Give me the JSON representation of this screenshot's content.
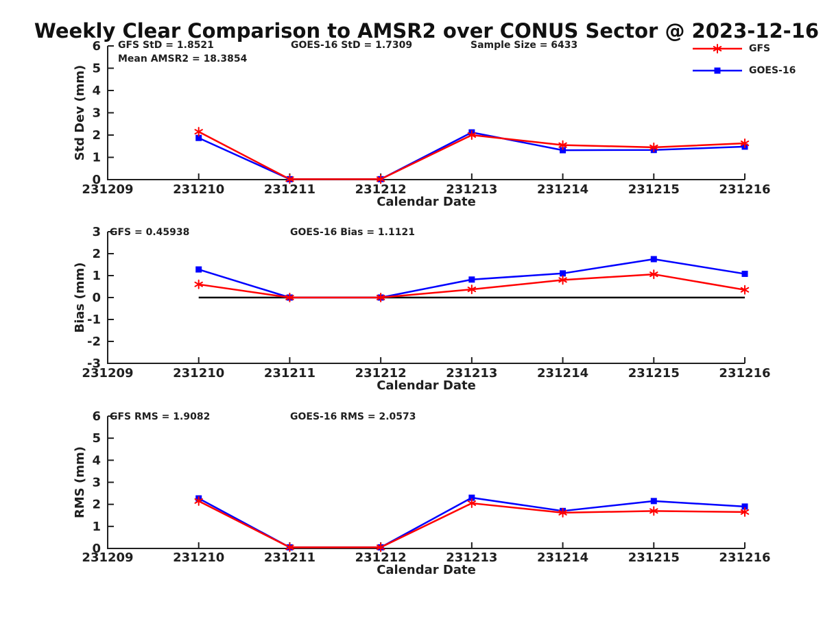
{
  "title": "Weekly Clear Comparison to AMSR2 over CONUS Sector @ 2023-12-16",
  "colors": {
    "gfs": "#ff0000",
    "goes16": "#0000ff",
    "axis": "#1f1f1f",
    "text": "#1f1f1f",
    "zero_line": "#000000",
    "background": "#ffffff"
  },
  "legend": [
    {
      "label": "GFS",
      "color": "#ff0000",
      "marker": "asterisk"
    },
    {
      "label": "GOES-16",
      "color": "#0000ff",
      "marker": "square"
    }
  ],
  "chart_data": [
    {
      "type": "line",
      "panel": "std-dev",
      "xlabel": "Calendar Date",
      "ylabel": "Std Dev (mm)",
      "ylim": [
        0,
        6
      ],
      "yticks": [
        0,
        1,
        2,
        3,
        4,
        5,
        6
      ],
      "x_ticklabels": [
        "231209",
        "231210",
        "231211",
        "231212",
        "231213",
        "231214",
        "231215",
        "231216"
      ],
      "x": [
        "231210",
        "231211",
        "231212",
        "231213",
        "231214",
        "231215",
        "231216"
      ],
      "series": [
        {
          "name": "GFS",
          "color": "#ff0000",
          "marker": "asterisk",
          "values": [
            2.15,
            0.02,
            0.02,
            2.0,
            1.55,
            1.45,
            1.63
          ]
        },
        {
          "name": "GOES-16",
          "color": "#0000ff",
          "marker": "square",
          "values": [
            1.87,
            0.02,
            0.02,
            2.12,
            1.32,
            1.33,
            1.48
          ]
        }
      ],
      "annotations": [
        "GFS StD = 1.8521",
        "GOES-16 StD = 1.7309",
        "Sample Size = 6433",
        "Mean AMSR2 = 18.3854"
      ],
      "zero_line": false,
      "grid": false,
      "legend_position": "upper-right-outside"
    },
    {
      "type": "line",
      "panel": "bias",
      "xlabel": "Calendar Date",
      "ylabel": "Bias (mm)",
      "ylim": [
        -3,
        3
      ],
      "yticks": [
        -3,
        -2,
        -1,
        0,
        1,
        2,
        3
      ],
      "x_ticklabels": [
        "231209",
        "231210",
        "231211",
        "231212",
        "231213",
        "231214",
        "231215",
        "231216"
      ],
      "x": [
        "231210",
        "231211",
        "231212",
        "231213",
        "231214",
        "231215",
        "231216"
      ],
      "series": [
        {
          "name": "GFS",
          "color": "#ff0000",
          "marker": "asterisk",
          "values": [
            0.6,
            0.0,
            0.0,
            0.37,
            0.8,
            1.06,
            0.35
          ]
        },
        {
          "name": "GOES-16",
          "color": "#0000ff",
          "marker": "square",
          "values": [
            1.28,
            0.0,
            0.0,
            0.82,
            1.1,
            1.75,
            1.08
          ]
        }
      ],
      "annotations": [
        "GFS = 0.45938",
        "GOES-16 Bias  = 1.1121"
      ],
      "zero_line": true,
      "grid": false
    },
    {
      "type": "line",
      "panel": "rms",
      "xlabel": "Calendar Date",
      "ylabel": "RMS (mm)",
      "ylim": [
        0,
        6
      ],
      "yticks": [
        0,
        1,
        2,
        3,
        4,
        5,
        6
      ],
      "x_ticklabels": [
        "231209",
        "231210",
        "231211",
        "231212",
        "231213",
        "231214",
        "231215",
        "231216"
      ],
      "x": [
        "231210",
        "231211",
        "231212",
        "231213",
        "231214",
        "231215",
        "231216"
      ],
      "series": [
        {
          "name": "GFS",
          "color": "#ff0000",
          "marker": "asterisk",
          "values": [
            2.15,
            0.05,
            0.05,
            2.05,
            1.62,
            1.7,
            1.65
          ]
        },
        {
          "name": "GOES-16",
          "color": "#0000ff",
          "marker": "square",
          "values": [
            2.27,
            0.05,
            0.05,
            2.3,
            1.7,
            2.15,
            1.9
          ]
        }
      ],
      "annotations": [
        "GFS RMS = 1.9082",
        "GOES-16 RMS = 2.0573"
      ],
      "zero_line": false,
      "grid": false
    }
  ]
}
